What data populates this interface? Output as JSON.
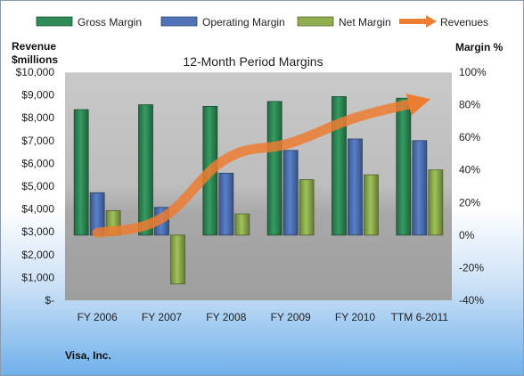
{
  "chart_data": {
    "type": "bar",
    "title": "12-Month Period Margins",
    "categories": [
      "FY 2006",
      "FY 2007",
      "FY 2008",
      "FY 2009",
      "FY 2010",
      "TTM 6-2011"
    ],
    "series": [
      {
        "name": "Gross Margin",
        "kind": "bar",
        "axis": "right",
        "unit": "%",
        "color": "#2e8b57",
        "values": [
          77,
          80,
          79,
          82,
          85,
          84
        ]
      },
      {
        "name": "Operating Margin",
        "kind": "bar",
        "axis": "right",
        "unit": "%",
        "color": "#4f73b6",
        "values": [
          26,
          17,
          38,
          52,
          59,
          58
        ]
      },
      {
        "name": "Net Margin",
        "kind": "bar",
        "axis": "right",
        "unit": "%",
        "color": "#8fae4f",
        "values": [
          15,
          -30,
          13,
          34,
          37,
          40
        ]
      },
      {
        "name": "Revenues",
        "kind": "line",
        "axis": "left",
        "unit": "$millions",
        "color": "#ed7d31",
        "values": [
          2950,
          3600,
          6200,
          6900,
          8000,
          8700
        ]
      }
    ],
    "y_left": {
      "label_line1": "Revenue",
      "label_line2": "$millions",
      "range": [
        0,
        10000
      ],
      "ticks": [
        "$-",
        "$1,000",
        "$2,000",
        "$3,000",
        "$4,000",
        "$5,000",
        "$6,000",
        "$7,000",
        "$8,000",
        "$9,000",
        "$10,000"
      ]
    },
    "y_right": {
      "label": "Margin %",
      "range": [
        -40,
        100
      ],
      "ticks": [
        "-40%",
        "-20%",
        "0%",
        "20%",
        "40%",
        "60%",
        "80%",
        "100%"
      ]
    },
    "legend_position": "top",
    "company": "Visa, Inc."
  }
}
